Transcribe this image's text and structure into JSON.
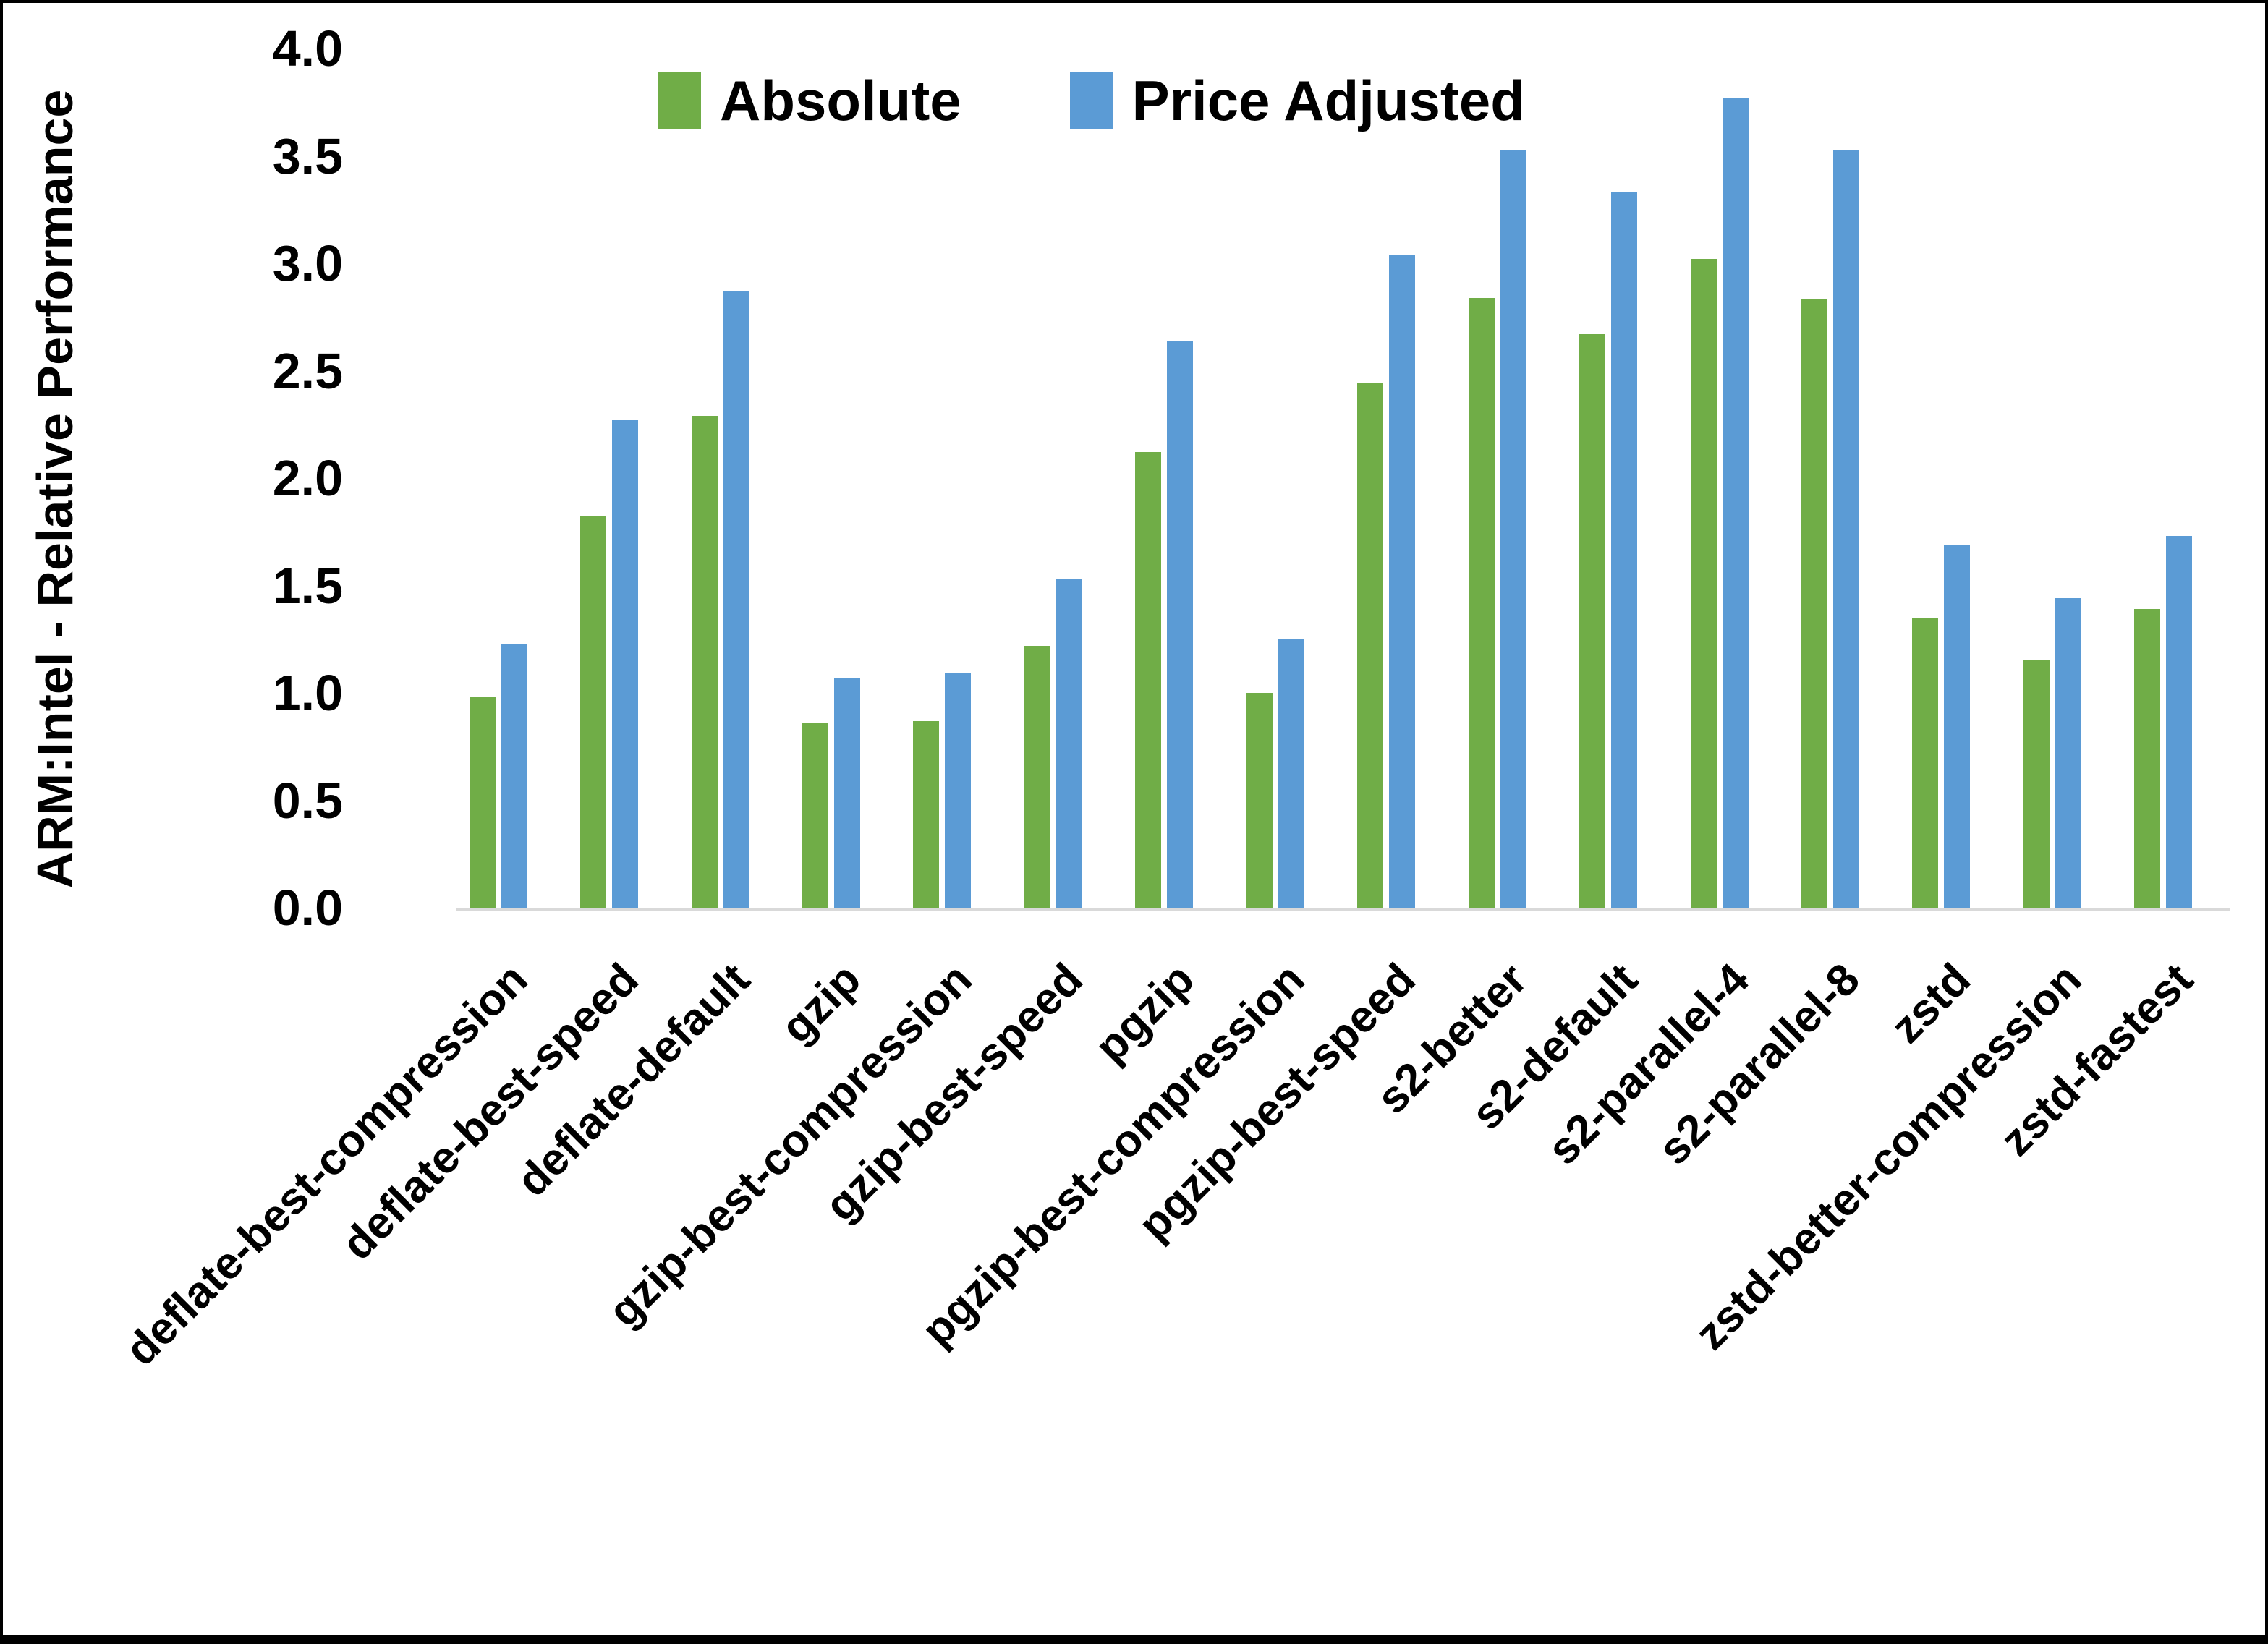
{
  "colors": {
    "absolute_series": "#70AD47",
    "price_adjusted_series": "#5B9BD5",
    "axis_line": "#D9D9D9",
    "text": "#000000",
    "frame_border": "#000000"
  },
  "chart_data": {
    "type": "bar",
    "title": "",
    "xlabel": "",
    "ylabel": "ARM:Intel - Relative Performance",
    "ylim": [
      0,
      4
    ],
    "ytick_step": 0.5,
    "ytick_labels": [
      "4.0",
      "3.5",
      "3.0",
      "2.5",
      "2.0",
      "1.5",
      "1.0",
      "0.5",
      "0.0"
    ],
    "grid": false,
    "legend_position": "top-center-inside",
    "categories": [
      "deflate-best-compression",
      "deflate-best-speed",
      "deflate-default",
      "gzip",
      "gzip-best-compression",
      "gzip-best-speed",
      "pgzip",
      "pgzip-best-compression",
      "pgzip-best-speed",
      "s2-better",
      "s2-default",
      "s2-parallel-4",
      "s2-parallel-8",
      "zstd",
      "zstd-better-compression",
      "zstd-fastest"
    ],
    "series": [
      {
        "name": "Absolute",
        "color": "#70AD47",
        "values": [
          0.98,
          1.82,
          2.29,
          0.86,
          0.87,
          1.22,
          2.12,
          1.0,
          2.44,
          2.84,
          2.67,
          3.02,
          2.83,
          1.35,
          1.15,
          1.39
        ]
      },
      {
        "name": "Price Adjusted",
        "color": "#5B9BD5",
        "values": [
          1.23,
          2.27,
          2.87,
          1.07,
          1.09,
          1.53,
          2.64,
          1.25,
          3.04,
          3.53,
          3.33,
          3.77,
          3.53,
          1.69,
          1.44,
          1.73
        ]
      }
    ]
  }
}
